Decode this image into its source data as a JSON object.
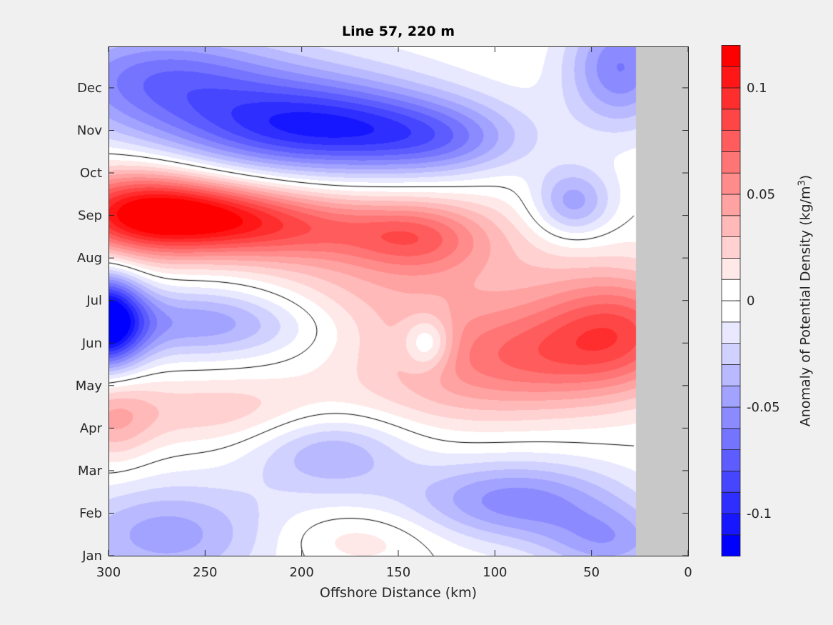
{
  "chart_data": {
    "type": "heatmap",
    "subtype": "filled-contour",
    "title": "Line 57, 220 m",
    "xlabel": "Offshore Distance (km)",
    "ylabel_prefix": "Anomaly of Potential Density (kg/m",
    "ylabel_sup": "3",
    "ylabel_suffix": ")",
    "xlim": [
      300,
      0
    ],
    "x_ticks": [
      300,
      250,
      200,
      150,
      100,
      50,
      0
    ],
    "y_ticks": [
      "Jan",
      "Feb",
      "Mar",
      "Apr",
      "May",
      "Jun",
      "Jul",
      "Aug",
      "Sep",
      "Oct",
      "Nov",
      "Dec"
    ],
    "ylim_months": [
      1,
      12.97
    ],
    "colorbar": {
      "range": [
        -0.12,
        0.12
      ],
      "level_step": 0.01,
      "ticks": [
        0.1,
        0.05,
        0,
        -0.05,
        -0.1
      ],
      "tick_labels": [
        "0.1",
        "0.05",
        "0",
        "-0.05",
        "-0.1"
      ],
      "colormap": "blue-white-red",
      "positive_color": "#ff0000",
      "negative_color": "#0000ff"
    },
    "zero_contour": true,
    "no_data_region_km": [
      0,
      27
    ],
    "no_data_color": "#c8c8c8",
    "field_features": [
      {
        "km": 290,
        "month": 9.1,
        "amp": 0.07,
        "skm": 30,
        "smon": 0.8
      },
      {
        "km": 255,
        "month": 9.0,
        "amp": 0.08,
        "skm": 35,
        "smon": 0.6
      },
      {
        "km": 200,
        "month": 8.7,
        "amp": 0.055,
        "skm": 40,
        "smon": 0.6
      },
      {
        "km": 140,
        "month": 8.5,
        "amp": 0.045,
        "skm": 25,
        "smon": 0.6
      },
      {
        "km": 100,
        "month": 8.0,
        "amp": 0.02,
        "skm": 40,
        "smon": 1.2
      },
      {
        "km": 35,
        "month": 6.3,
        "amp": 0.07,
        "skm": 30,
        "smon": 1.0
      },
      {
        "km": 90,
        "month": 5.6,
        "amp": 0.055,
        "skm": 40,
        "smon": 0.9
      },
      {
        "km": 230,
        "month": 4.4,
        "amp": 0.03,
        "skm": 60,
        "smon": 0.6
      },
      {
        "km": 298,
        "month": 4.2,
        "amp": 0.03,
        "skm": 15,
        "smon": 0.8
      },
      {
        "km": 170,
        "month": 1.4,
        "amp": 0.018,
        "skm": 30,
        "smon": 0.5
      },
      {
        "km": 150,
        "month": 6.0,
        "amp": 0.015,
        "skm": 40,
        "smon": 1.5
      },
      {
        "km": 180,
        "month": 7.2,
        "amp": 0.02,
        "skm": 40,
        "smon": 0.8
      },
      {
        "km": 180,
        "month": 11.0,
        "amp": -0.07,
        "skm": 50,
        "smon": 0.7
      },
      {
        "km": 230,
        "month": 11.6,
        "amp": -0.05,
        "skm": 60,
        "smon": 1.0
      },
      {
        "km": 280,
        "month": 12.4,
        "amp": -0.04,
        "skm": 40,
        "smon": 0.8
      },
      {
        "km": 125,
        "month": 10.7,
        "amp": -0.03,
        "skm": 30,
        "smon": 0.6
      },
      {
        "km": 60,
        "month": 9.3,
        "amp": -0.05,
        "skm": 15,
        "smon": 0.6
      },
      {
        "km": 35,
        "month": 12.5,
        "amp": -0.06,
        "skm": 20,
        "smon": 1.0
      },
      {
        "km": 302,
        "month": 6.5,
        "amp": -0.12,
        "skm": 14,
        "smon": 0.8
      },
      {
        "km": 250,
        "month": 6.5,
        "amp": -0.05,
        "skm": 45,
        "smon": 0.6
      },
      {
        "km": 135,
        "month": 6.0,
        "amp": -0.04,
        "skm": 9,
        "smon": 0.45
      },
      {
        "km": 185,
        "month": 3.6,
        "amp": -0.045,
        "skm": 30,
        "smon": 0.8
      },
      {
        "km": 90,
        "month": 2.3,
        "amp": -0.055,
        "skm": 40,
        "smon": 0.7
      },
      {
        "km": 40,
        "month": 1.3,
        "amp": -0.04,
        "skm": 25,
        "smon": 0.6
      },
      {
        "km": 270,
        "month": 1.5,
        "amp": -0.045,
        "skm": 40,
        "smon": 0.9
      }
    ]
  }
}
